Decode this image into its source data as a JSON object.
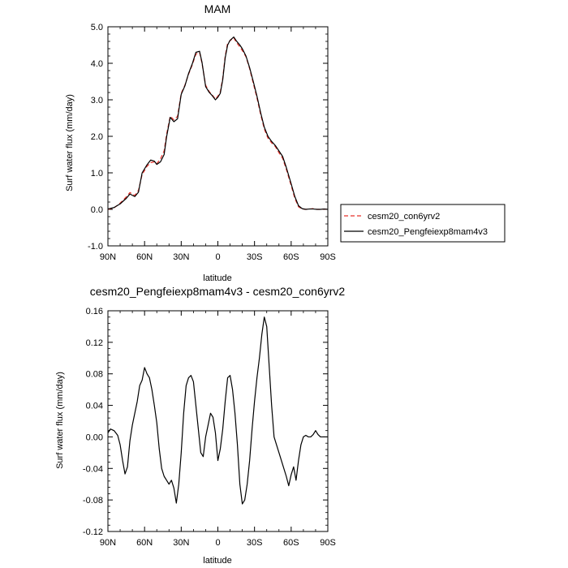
{
  "chart_data": [
    {
      "type": "line",
      "title": "MAM",
      "xlabel": "latitude",
      "ylabel": "Surf water flux (mm/day)",
      "xlim": [
        90,
        -90
      ],
      "ylim": [
        -1.0,
        5.0
      ],
      "x_ticks": [
        90,
        60,
        30,
        0,
        -30,
        -60,
        -90
      ],
      "x_tick_labels": [
        "90N",
        "60N",
        "30N",
        "0",
        "30S",
        "60S",
        "90S"
      ],
      "y_ticks": [
        -1.0,
        0.0,
        1.0,
        2.0,
        3.0,
        4.0,
        5.0
      ],
      "y_tick_labels": [
        "-1.0",
        "0.0",
        "1.0",
        "2.0",
        "3.0",
        "4.0",
        "5.0"
      ],
      "grid": false,
      "legend_position": "right",
      "series": [
        {
          "name": "cesm20_con6yrv2",
          "color": "#e8312a",
          "dash": "dashed",
          "x": [
            90,
            85,
            80,
            75,
            72,
            68,
            65,
            62,
            58,
            55,
            52,
            50,
            47,
            44,
            42,
            39,
            36,
            33,
            30,
            27,
            24,
            21,
            18,
            15,
            13,
            10,
            7,
            5,
            2,
            0,
            -2,
            -4,
            -6,
            -8,
            -10,
            -13,
            -15,
            -18,
            -20,
            -23,
            -26,
            -29,
            -32,
            -35,
            -38,
            -41,
            -44,
            -47,
            -50,
            -53,
            -56,
            -60,
            -63,
            -66,
            -69,
            -72,
            -75,
            -78,
            -81,
            -84,
            -87,
            -90
          ],
          "y": [
            0.0,
            0.04,
            0.17,
            0.34,
            0.46,
            0.38,
            0.52,
            0.95,
            1.18,
            1.28,
            1.3,
            1.25,
            1.38,
            1.6,
            2.05,
            2.55,
            2.45,
            2.55,
            3.18,
            3.4,
            3.7,
            3.95,
            4.25,
            4.3,
            4.0,
            3.4,
            3.22,
            3.15,
            3.02,
            3.1,
            3.22,
            3.6,
            4.2,
            4.55,
            4.62,
            4.7,
            4.58,
            4.45,
            4.35,
            4.18,
            3.85,
            3.45,
            3.05,
            2.6,
            2.2,
            1.95,
            1.82,
            1.72,
            1.55,
            1.4,
            1.1,
            0.65,
            0.3,
            0.07,
            0.01,
            0.0,
            0.01,
            0.02,
            0.0,
            0.0,
            0.01,
            0.0
          ]
        },
        {
          "name": "cesm20_Pengfeiexp8mam4v3",
          "color": "#000000",
          "dash": "solid",
          "x": [
            90,
            85,
            80,
            75,
            72,
            68,
            65,
            62,
            58,
            55,
            52,
            50,
            47,
            44,
            42,
            39,
            36,
            33,
            30,
            27,
            24,
            21,
            18,
            15,
            13,
            10,
            7,
            5,
            2,
            0,
            -2,
            -4,
            -6,
            -8,
            -10,
            -13,
            -15,
            -18,
            -20,
            -23,
            -26,
            -29,
            -32,
            -35,
            -38,
            -41,
            -44,
            -47,
            -50,
            -53,
            -56,
            -60,
            -63,
            -66,
            -69,
            -72,
            -75,
            -78,
            -81,
            -84,
            -87,
            -90
          ],
          "y": [
            0.01,
            0.05,
            0.15,
            0.3,
            0.42,
            0.35,
            0.47,
            1.0,
            1.22,
            1.35,
            1.32,
            1.23,
            1.3,
            1.5,
            1.98,
            2.52,
            2.4,
            2.48,
            3.15,
            3.38,
            3.72,
            3.98,
            4.3,
            4.33,
            4.03,
            3.36,
            3.2,
            3.13,
            3.0,
            3.07,
            3.18,
            3.55,
            4.15,
            4.5,
            4.63,
            4.72,
            4.62,
            4.5,
            4.4,
            4.2,
            3.88,
            3.5,
            3.1,
            2.65,
            2.25,
            2.0,
            1.86,
            1.75,
            1.6,
            1.45,
            1.15,
            0.7,
            0.35,
            0.1,
            0.02,
            0.0,
            0.01,
            0.01,
            0.0,
            0.0,
            0.01,
            0.0
          ]
        }
      ]
    },
    {
      "type": "line",
      "title": "cesm20_Pengfeiexp8mam4v3 - cesm20_con6yrv2",
      "xlabel": "latitude",
      "ylabel": "Surf water flux (mm/day)",
      "xlim": [
        90,
        -90
      ],
      "ylim": [
        -0.12,
        0.16
      ],
      "x_ticks": [
        90,
        60,
        30,
        0,
        -30,
        -60,
        -90
      ],
      "x_tick_labels": [
        "90N",
        "60N",
        "30N",
        "0",
        "30S",
        "60S",
        "90S"
      ],
      "y_ticks": [
        -0.12,
        -0.08,
        -0.04,
        0.0,
        0.04,
        0.08,
        0.12,
        0.16
      ],
      "y_tick_labels": [
        "-0.12",
        "-0.08",
        "-0.04",
        "0.00",
        "0.04",
        "0.08",
        "0.12",
        "0.16"
      ],
      "grid": false,
      "series": [
        {
          "color": "#000000",
          "dash": "solid",
          "x": [
            90,
            88,
            85,
            82,
            80,
            78,
            76,
            74,
            72,
            70,
            68,
            66,
            64,
            62,
            60,
            58,
            56,
            54,
            52,
            50,
            48,
            46,
            44,
            42,
            40,
            38,
            36,
            34,
            32,
            30,
            28,
            26,
            24,
            22,
            20,
            18,
            16,
            14,
            12,
            10,
            8,
            6,
            4,
            2,
            0,
            -2,
            -4,
            -6,
            -8,
            -10,
            -12,
            -14,
            -16,
            -18,
            -20,
            -22,
            -24,
            -26,
            -28,
            -30,
            -32,
            -34,
            -36,
            -38,
            -40,
            -42,
            -44,
            -46,
            -48,
            -50,
            -52,
            -54,
            -56,
            -58,
            -60,
            -62,
            -64,
            -66,
            -68,
            -70,
            -72,
            -74,
            -76,
            -78,
            -80,
            -82,
            -84,
            -86,
            -88,
            -90
          ],
          "y": [
            0.005,
            0.01,
            0.008,
            0.002,
            -0.01,
            -0.03,
            -0.047,
            -0.038,
            -0.005,
            0.015,
            0.03,
            0.045,
            0.065,
            0.072,
            0.088,
            0.08,
            0.075,
            0.06,
            0.04,
            0.018,
            -0.015,
            -0.04,
            -0.05,
            -0.055,
            -0.06,
            -0.055,
            -0.065,
            -0.084,
            -0.06,
            -0.02,
            0.03,
            0.065,
            0.075,
            0.078,
            0.07,
            0.04,
            0.01,
            -0.02,
            -0.025,
            0.0,
            0.015,
            0.03,
            0.025,
            0.005,
            -0.03,
            -0.015,
            0.01,
            0.045,
            0.075,
            0.078,
            0.06,
            0.03,
            -0.01,
            -0.06,
            -0.085,
            -0.08,
            -0.06,
            -0.03,
            0.01,
            0.045,
            0.075,
            0.1,
            0.13,
            0.152,
            0.14,
            0.09,
            0.04,
            0.0,
            -0.01,
            -0.02,
            -0.03,
            -0.04,
            -0.05,
            -0.062,
            -0.048,
            -0.038,
            -0.055,
            -0.03,
            -0.01,
            0.0,
            0.002,
            0.0,
            0.0,
            0.003,
            0.008,
            0.003,
            0.0,
            0.0,
            0.0,
            0.0
          ]
        }
      ]
    }
  ]
}
